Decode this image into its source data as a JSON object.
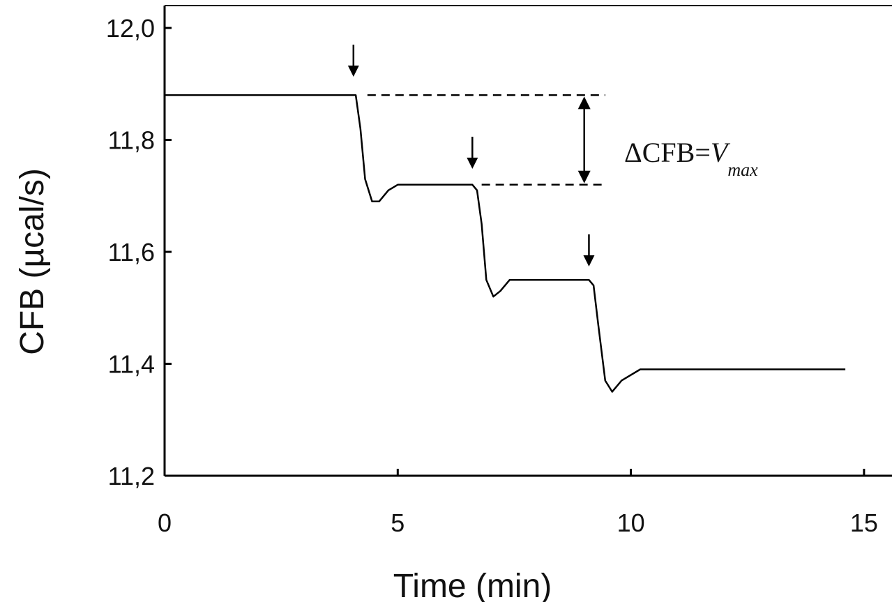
{
  "chart_data": {
    "type": "line",
    "title": "",
    "xlabel": "Time (min)",
    "ylabel": "CFB (µcal/s)",
    "xlim": [
      0,
      15.6
    ],
    "ylim": [
      11.2,
      12.04
    ],
    "x_ticks": [
      0,
      5,
      10,
      15
    ],
    "x_tick_labels": [
      "0",
      "5",
      "10",
      "15"
    ],
    "y_ticks": [
      11.2,
      11.4,
      11.6,
      11.8,
      12.0
    ],
    "y_tick_labels": [
      "11,2",
      "11,4",
      "11,6",
      "11,8",
      "12,0"
    ],
    "grid": false,
    "legend": "none",
    "series": [
      {
        "x": [
          0,
          1,
          2,
          3,
          3.9,
          4.1,
          4.2,
          4.3,
          4.45,
          4.6,
          4.8,
          5.0,
          5.4,
          6.0,
          6.6,
          6.7,
          6.8,
          6.9,
          7.05,
          7.2,
          7.4,
          7.8,
          8.4,
          8.9,
          9.1,
          9.2,
          9.3,
          9.45,
          9.6,
          9.8,
          10.2,
          11.0,
          12.0,
          13.0,
          14.0,
          14.6
        ],
        "y": [
          11.88,
          11.88,
          11.88,
          11.88,
          11.88,
          11.88,
          11.82,
          11.73,
          11.69,
          11.69,
          11.71,
          11.72,
          11.72,
          11.72,
          11.72,
          11.71,
          11.65,
          11.55,
          11.52,
          11.53,
          11.55,
          11.55,
          11.55,
          11.55,
          11.55,
          11.54,
          11.47,
          11.37,
          11.35,
          11.37,
          11.39,
          11.39,
          11.39,
          11.39,
          11.39,
          11.39
        ]
      }
    ],
    "injection_arrows_x": [
      4.2,
      6.75,
      9.25
    ],
    "annotations": {
      "delta_prefix": "ΔCFB=",
      "delta_symbol": "V",
      "delta_subscript": "max",
      "level_top": 11.88,
      "level_bottom": 11.72
    }
  }
}
